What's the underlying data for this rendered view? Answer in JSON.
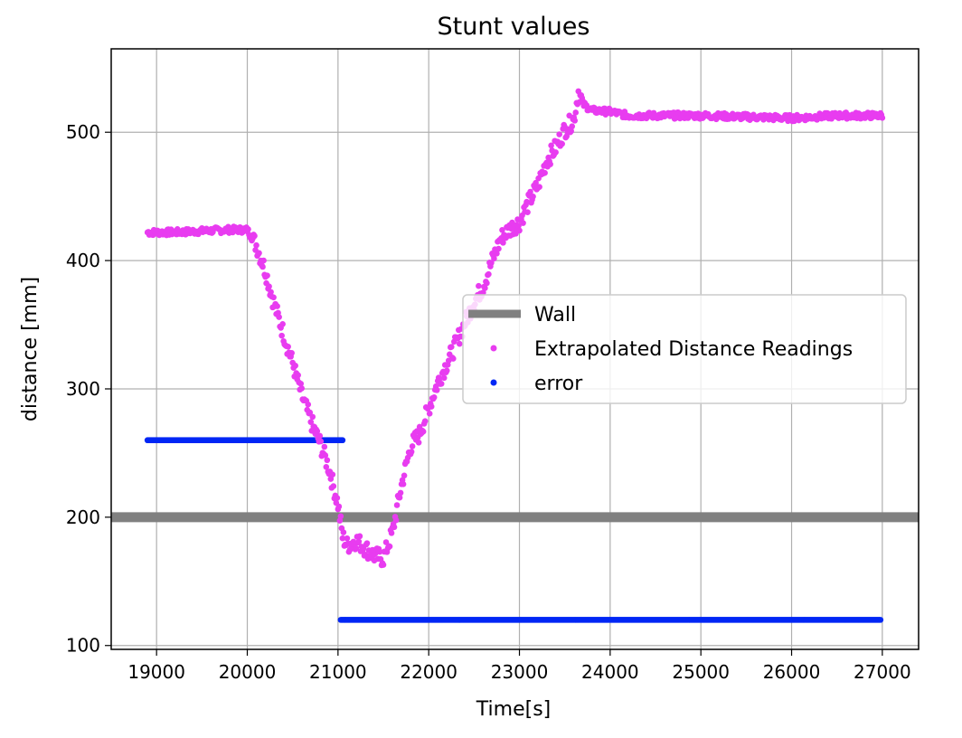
{
  "chart_data": {
    "type": "scatter",
    "title": "Stunt values",
    "xlabel": "Time[s]",
    "ylabel": "distance [mm]",
    "xlim": [
      18500,
      27400
    ],
    "ylim": [
      97,
      565
    ],
    "xticks": [
      19000,
      20000,
      21000,
      22000,
      23000,
      24000,
      25000,
      26000,
      27000
    ],
    "yticks": [
      100,
      200,
      300,
      400,
      500
    ],
    "grid": true,
    "legend_position": "center-right",
    "wall": {
      "name": "Wall",
      "y": 200,
      "color": "#808080"
    },
    "series": [
      {
        "name": "Extrapolated Distance Readings",
        "color": "#e83cf0",
        "keypoints": [
          [
            18900,
            422
          ],
          [
            19200,
            422
          ],
          [
            19500,
            423
          ],
          [
            19800,
            424
          ],
          [
            20000,
            424
          ],
          [
            20100,
            412
          ],
          [
            20200,
            392
          ],
          [
            20300,
            365
          ],
          [
            20400,
            343
          ],
          [
            20500,
            320
          ],
          [
            20600,
            295
          ],
          [
            20700,
            275
          ],
          [
            20800,
            258
          ],
          [
            20900,
            238
          ],
          [
            21000,
            210
          ],
          [
            21050,
            185
          ],
          [
            21100,
            178
          ],
          [
            21200,
            182
          ],
          [
            21300,
            176
          ],
          [
            21400,
            170
          ],
          [
            21500,
            168
          ],
          [
            21600,
            188
          ],
          [
            21700,
            225
          ],
          [
            21800,
            255
          ],
          [
            21900,
            265
          ],
          [
            22000,
            285
          ],
          [
            22100,
            305
          ],
          [
            22200,
            320
          ],
          [
            22300,
            335
          ],
          [
            22400,
            352
          ],
          [
            22500,
            368
          ],
          [
            22600,
            380
          ],
          [
            22700,
            400
          ],
          [
            22800,
            418
          ],
          [
            22900,
            425
          ],
          [
            23000,
            430
          ],
          [
            23100,
            445
          ],
          [
            23200,
            458
          ],
          [
            23300,
            478
          ],
          [
            23400,
            488
          ],
          [
            23500,
            502
          ],
          [
            23600,
            510
          ],
          [
            23650,
            532
          ],
          [
            23700,
            522
          ],
          [
            23800,
            517
          ],
          [
            24000,
            516
          ],
          [
            24200,
            513
          ],
          [
            24500,
            513
          ],
          [
            25000,
            513
          ],
          [
            25500,
            512
          ],
          [
            26000,
            511
          ],
          [
            26500,
            513
          ],
          [
            27000,
            513
          ]
        ]
      },
      {
        "name": "error",
        "color": "#0027f5",
        "segments": [
          {
            "x_start": 18900,
            "x_end": 21050,
            "y": 260
          },
          {
            "x_start": 21030,
            "x_end": 26980,
            "y": 120
          }
        ]
      }
    ]
  }
}
